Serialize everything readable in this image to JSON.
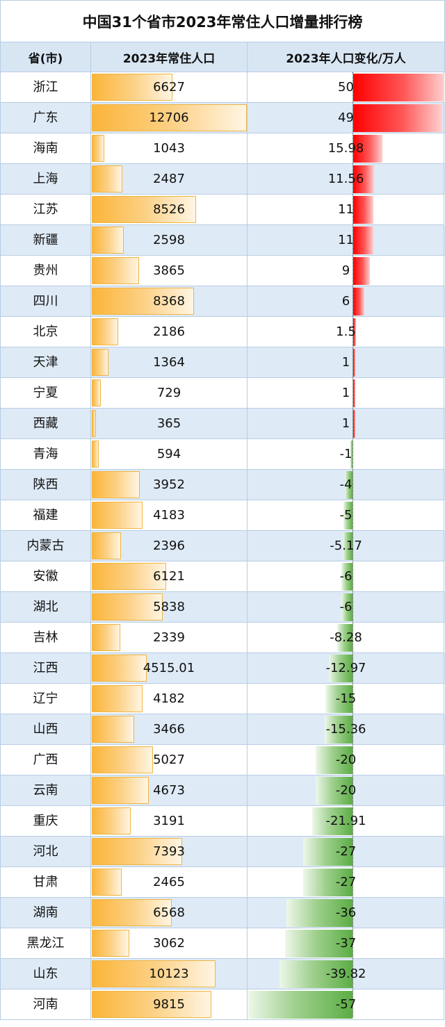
{
  "title": "中国31个省市2023年常住人口增量排行榜",
  "columns": {
    "province": "省(市)",
    "population": "2023年常住人口",
    "change": "2023年人口变化/万人"
  },
  "colors": {
    "pop_bar": "#fbb53a",
    "pos_bar": "#ff0000",
    "neg_bar": "#5cad45",
    "header_bg": "#d8e6f4",
    "alt_row": "#deeaf6",
    "grid": "#b7cde3"
  },
  "chart_data": {
    "type": "table",
    "title": "中国31个省市2023年常住人口增量排行榜",
    "columns": [
      "省(市)",
      "2023年常住人口",
      "2023年人口变化/万人"
    ],
    "pop_max": 12706,
    "change_range": [
      -57,
      50
    ],
    "rows": [
      {
        "name": "浙江",
        "pop": "6627",
        "change": "50"
      },
      {
        "name": "广东",
        "pop": "12706",
        "change": "49"
      },
      {
        "name": "海南",
        "pop": "1043",
        "change": "15.98"
      },
      {
        "name": "上海",
        "pop": "2487",
        "change": "11.56"
      },
      {
        "name": "江苏",
        "pop": "8526",
        "change": "11"
      },
      {
        "name": "新疆",
        "pop": "2598",
        "change": "11"
      },
      {
        "name": "贵州",
        "pop": "3865",
        "change": "9"
      },
      {
        "name": "四川",
        "pop": "8368",
        "change": "6"
      },
      {
        "name": "北京",
        "pop": "2186",
        "change": "1.5"
      },
      {
        "name": "天津",
        "pop": "1364",
        "change": "1"
      },
      {
        "name": "宁夏",
        "pop": "729",
        "change": "1"
      },
      {
        "name": "西藏",
        "pop": "365",
        "change": "1"
      },
      {
        "name": "青海",
        "pop": "594",
        "change": "-1"
      },
      {
        "name": "陕西",
        "pop": "3952",
        "change": "-4"
      },
      {
        "name": "福建",
        "pop": "4183",
        "change": "-5"
      },
      {
        "name": "内蒙古",
        "pop": "2396",
        "change": "-5.17"
      },
      {
        "name": "安徽",
        "pop": "6121",
        "change": "-6"
      },
      {
        "name": "湖北",
        "pop": "5838",
        "change": "-6"
      },
      {
        "name": "吉林",
        "pop": "2339",
        "change": "-8.28"
      },
      {
        "name": "江西",
        "pop": "4515.01",
        "change": "-12.97"
      },
      {
        "name": "辽宁",
        "pop": "4182",
        "change": "-15"
      },
      {
        "name": "山西",
        "pop": "3466",
        "change": "-15.36"
      },
      {
        "name": "广西",
        "pop": "5027",
        "change": "-20"
      },
      {
        "name": "云南",
        "pop": "4673",
        "change": "-20"
      },
      {
        "name": "重庆",
        "pop": "3191",
        "change": "-21.91"
      },
      {
        "name": "河北",
        "pop": "7393",
        "change": "-27"
      },
      {
        "name": "甘肃",
        "pop": "2465",
        "change": "-27"
      },
      {
        "name": "湖南",
        "pop": "6568",
        "change": "-36"
      },
      {
        "name": "黑龙江",
        "pop": "3062",
        "change": "-37"
      },
      {
        "name": "山东",
        "pop": "10123",
        "change": "-39.82"
      },
      {
        "name": "河南",
        "pop": "9815",
        "change": "-57"
      }
    ]
  }
}
